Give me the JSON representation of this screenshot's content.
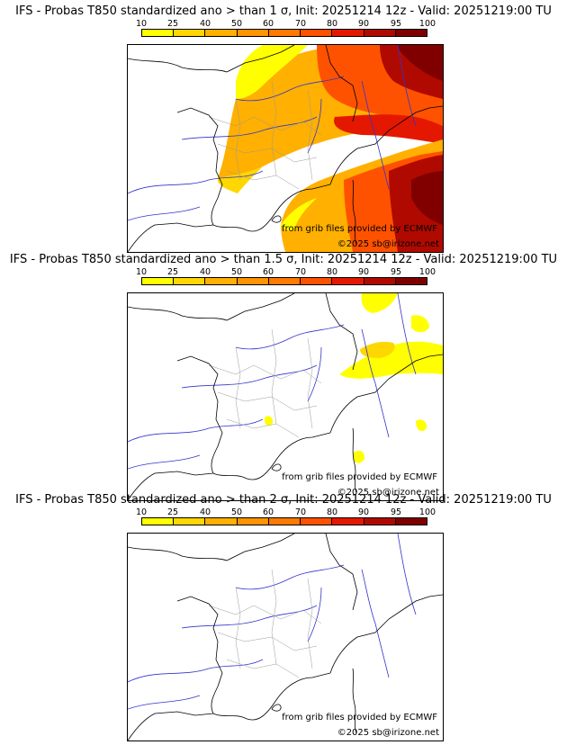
{
  "colorbar": {
    "ticks": [
      "10",
      "25",
      "40",
      "50",
      "60",
      "70",
      "80",
      "90",
      "95",
      "100"
    ],
    "colors": [
      "#ffff00",
      "#ffd700",
      "#ffb000",
      "#ff9400",
      "#ff7a00",
      "#ff5200",
      "#e41800",
      "#b00a00",
      "#800000"
    ]
  },
  "panels": [
    {
      "title": "IFS - Probas T850  standardized ano > than 1 σ, Init: 20251214 12z - Valid: 20251219:00 TU",
      "credit_grib": "from grib files provided by ECMWF",
      "credit_copy": "©2025 sb@irizone.net"
    },
    {
      "title": "IFS - Probas T850  standardized ano > than 1.5 σ, Init: 20251214 12z - Valid: 20251219:00 TU",
      "credit_grib": "from grib files provided by ECMWF",
      "credit_copy": "©2025 sb@irizone.net"
    },
    {
      "title": "IFS - Probas T850  standardized ano > than 2 σ, Init: 20251214 12z - Valid: 20251219:00 TU",
      "credit_grib": "from grib files provided by ECMWF",
      "credit_copy": "©2025 sb@irizone.net"
    }
  ]
}
